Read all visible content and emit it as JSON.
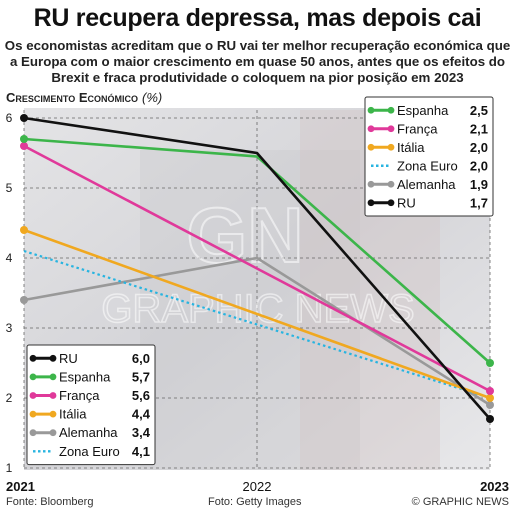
{
  "title": "RU recupera depressa, mas depois cai",
  "subtitle": "Os economistas acreditam que o RU vai ter melhor recuperação económica que a Europa com o maior crescimento em quase 50 anos, antes que os efeitos do Brexit e fraca produtividade o coloquem na pior posição em 2023",
  "chart_title": "Crescimento Económico",
  "chart_unit": "(%)",
  "watermark": [
    "GN",
    "GRAPHIC NEWS"
  ],
  "footer": {
    "source": "Fonte: Bloomberg",
    "photo": "Foto: Getty Images",
    "credit": "© GRAPHIC NEWS"
  },
  "chart_data": {
    "type": "line",
    "title": "Crescimento Económico",
    "ylabel": "(%)",
    "x": [
      "2021",
      "2022",
      "2023"
    ],
    "ylim": [
      1,
      6
    ],
    "yticks": [
      "1",
      "2",
      "3",
      "4",
      "5",
      "6"
    ],
    "grid": true,
    "series": [
      {
        "name": "RU",
        "color": "#111111",
        "dashed": false,
        "values": [
          6.0,
          5.5,
          1.7
        ],
        "label_2021": "6,0",
        "label_2023": "1,7"
      },
      {
        "name": "Espanha",
        "color": "#3cb54a",
        "dashed": false,
        "values": [
          5.7,
          5.45,
          2.5
        ],
        "label_2021": "5,7",
        "label_2023": "2,5"
      },
      {
        "name": "França",
        "color": "#e0399a",
        "dashed": false,
        "values": [
          5.6,
          null,
          2.1
        ],
        "label_2021": "5,6",
        "label_2023": "2,1"
      },
      {
        "name": "Itália",
        "color": "#f0a820",
        "dashed": false,
        "values": [
          4.4,
          null,
          2.0
        ],
        "label_2021": "4,4",
        "label_2023": "2,0"
      },
      {
        "name": "Alemanha",
        "color": "#999999",
        "dashed": false,
        "values": [
          3.4,
          4.0,
          1.9
        ],
        "label_2021": "3,4",
        "label_2023": "1,9"
      },
      {
        "name": "Zona Euro",
        "color": "#28b4e0",
        "dashed": true,
        "values": [
          4.1,
          null,
          2.0
        ],
        "label_2021": "4,1",
        "label_2023": "2,0"
      }
    ],
    "legend_2021_order": [
      "RU",
      "Espanha",
      "França",
      "Itália",
      "Alemanha",
      "Zona Euro"
    ],
    "legend_2023_order": [
      "Espanha",
      "França",
      "Itália",
      "Zona Euro",
      "Alemanha",
      "RU"
    ]
  }
}
